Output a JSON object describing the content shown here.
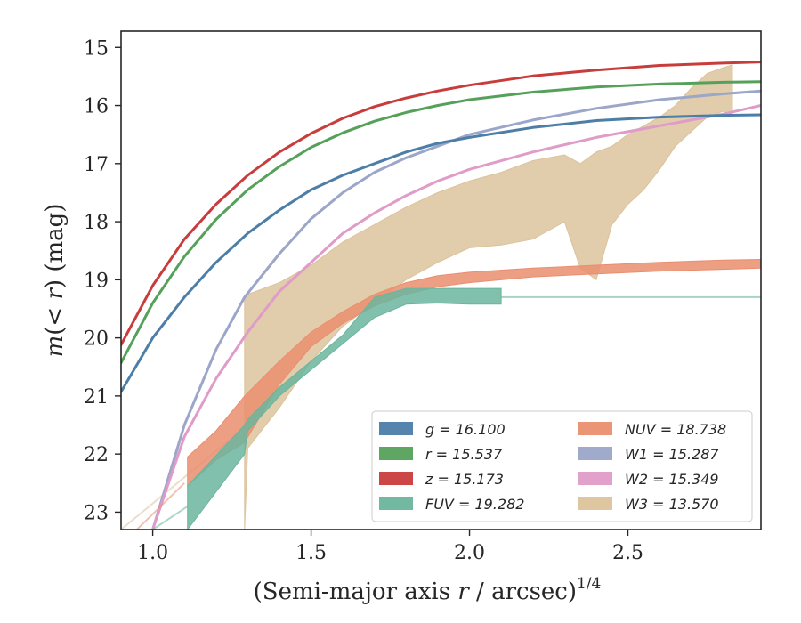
{
  "chart_data": {
    "type": "line",
    "xlabel": "(Semi-major axis r / arcsec)",
    "xlabel_var": "r",
    "xlabel_exp": "1/4",
    "ylabel": "m(< r) (mag)",
    "xlim": [
      0.9,
      2.92
    ],
    "ylim": [
      23.3,
      14.72
    ],
    "y_inverted": true,
    "x_ticks": [
      1.0,
      1.5,
      2.0,
      2.5
    ],
    "x_tick_labels": [
      "1.0",
      "1.5",
      "2.0",
      "2.5"
    ],
    "y_ticks": [
      15,
      16,
      17,
      18,
      19,
      20,
      21,
      22,
      23
    ],
    "y_tick_labels": [
      "15",
      "16",
      "17",
      "18",
      "19",
      "20",
      "21",
      "22",
      "23"
    ],
    "grid": false,
    "legend_position": "bottom-right",
    "legend_columns": 2,
    "series": [
      {
        "name": "g = 16.100",
        "color": "#4c7ea8",
        "kind": "line",
        "x": [
          0.9,
          1.0,
          1.1,
          1.2,
          1.3,
          1.4,
          1.5,
          1.6,
          1.7,
          1.8,
          1.9,
          2.0,
          2.2,
          2.4,
          2.6,
          2.8,
          2.92
        ],
        "y": [
          20.93,
          20.0,
          19.3,
          18.7,
          18.2,
          17.8,
          17.45,
          17.2,
          17.0,
          16.8,
          16.65,
          16.55,
          16.38,
          16.26,
          16.2,
          16.17,
          16.16
        ]
      },
      {
        "name": "r = 15.537",
        "color": "#55a15a",
        "kind": "line",
        "x": [
          0.9,
          1.0,
          1.1,
          1.2,
          1.3,
          1.4,
          1.5,
          1.6,
          1.7,
          1.8,
          1.9,
          2.0,
          2.2,
          2.4,
          2.6,
          2.8,
          2.92
        ],
        "y": [
          20.43,
          19.4,
          18.6,
          17.96,
          17.45,
          17.05,
          16.72,
          16.47,
          16.27,
          16.12,
          16.0,
          15.9,
          15.77,
          15.68,
          15.63,
          15.6,
          15.59
        ]
      },
      {
        "name": "z = 15.173",
        "color": "#c93c3c",
        "kind": "line",
        "x": [
          0.9,
          1.0,
          1.1,
          1.2,
          1.3,
          1.4,
          1.5,
          1.6,
          1.7,
          1.8,
          1.9,
          2.0,
          2.2,
          2.4,
          2.6,
          2.8,
          2.92
        ],
        "y": [
          20.12,
          19.1,
          18.3,
          17.7,
          17.2,
          16.8,
          16.48,
          16.22,
          16.02,
          15.87,
          15.75,
          15.65,
          15.49,
          15.39,
          15.31,
          15.27,
          15.25
        ]
      },
      {
        "name": "FUV = 19.282",
        "color": "#6bb59d",
        "kind": "band",
        "x": [
          1.11,
          1.29,
          1.3,
          1.4,
          1.5,
          1.6,
          1.7,
          1.8,
          1.9,
          2.0,
          2.1
        ],
        "y_low": [
          23.3,
          22.0,
          21.6,
          21.0,
          20.55,
          20.1,
          19.65,
          19.42,
          19.4,
          19.42,
          19.42
        ],
        "y_high": [
          22.55,
          21.5,
          21.4,
          20.85,
          20.4,
          19.95,
          19.3,
          19.15,
          19.15,
          19.15,
          19.15
        ],
        "tail_x": [
          2.1,
          2.92
        ],
        "tail_y": [
          19.3,
          19.3
        ],
        "pre_x": [
          1.0,
          1.11
        ],
        "pre_y": [
          23.3,
          22.9
        ]
      },
      {
        "name": "NUV = 18.738",
        "color": "#ea8e6f",
        "kind": "band",
        "x": [
          1.11,
          1.2,
          1.29,
          1.4,
          1.5,
          1.6,
          1.7,
          1.8,
          1.9,
          2.0,
          2.2,
          2.4,
          2.6,
          2.8,
          2.92
        ],
        "y_low": [
          22.55,
          22.1,
          21.8,
          20.8,
          20.15,
          19.75,
          19.45,
          19.25,
          19.12,
          19.05,
          18.95,
          18.9,
          18.85,
          18.82,
          18.8
        ],
        "y_high": [
          22.05,
          21.6,
          21.0,
          20.4,
          19.9,
          19.55,
          19.25,
          19.05,
          18.93,
          18.87,
          18.8,
          18.75,
          18.7,
          18.66,
          18.65
        ],
        "pre_x": [
          0.95,
          1.1
        ],
        "pre_y": [
          23.3,
          22.5
        ]
      },
      {
        "name": "W1 = 15.287",
        "color": "#9ba6c8",
        "kind": "line",
        "x": [
          1.0,
          1.1,
          1.2,
          1.29,
          1.4,
          1.5,
          1.6,
          1.7,
          1.8,
          1.9,
          2.0,
          2.2,
          2.4,
          2.6,
          2.8,
          2.92
        ],
        "y": [
          23.3,
          21.5,
          20.2,
          19.3,
          18.55,
          17.95,
          17.5,
          17.15,
          16.9,
          16.7,
          16.5,
          16.25,
          16.05,
          15.9,
          15.8,
          15.75
        ]
      },
      {
        "name": "W2 = 15.349",
        "color": "#e09cc8",
        "kind": "line",
        "x": [
          1.0,
          1.1,
          1.2,
          1.3,
          1.4,
          1.5,
          1.6,
          1.7,
          1.8,
          1.9,
          2.0,
          2.2,
          2.4,
          2.6,
          2.8,
          2.92
        ],
        "y": [
          23.3,
          21.7,
          20.7,
          19.9,
          19.2,
          18.7,
          18.2,
          17.85,
          17.55,
          17.3,
          17.1,
          16.8,
          16.55,
          16.35,
          16.15,
          16.0
        ]
      },
      {
        "name": "W3 = 13.570",
        "color": "#dcc39c",
        "kind": "band",
        "x": [
          1.29,
          1.3,
          1.4,
          1.5,
          1.6,
          1.7,
          1.8,
          1.9,
          2.0,
          2.1,
          2.2,
          2.3,
          2.35,
          2.4,
          2.45,
          2.5,
          2.55,
          2.6,
          2.65,
          2.7,
          2.75,
          2.8,
          2.83
        ],
        "y_low": [
          23.3,
          21.9,
          21.2,
          20.4,
          19.8,
          19.4,
          19.0,
          18.7,
          18.45,
          18.4,
          18.3,
          18.0,
          18.8,
          19.0,
          18.05,
          17.7,
          17.45,
          17.1,
          16.7,
          16.45,
          16.2,
          16.1,
          16.15
        ],
        "y_high": [
          19.3,
          19.25,
          19.05,
          18.75,
          18.35,
          18.05,
          17.75,
          17.5,
          17.3,
          17.15,
          16.95,
          16.85,
          17.0,
          16.8,
          16.7,
          16.5,
          16.35,
          16.2,
          16.0,
          15.7,
          15.45,
          15.35,
          15.3
        ],
        "pre_x": [
          0.9,
          1.3
        ],
        "pre_y": [
          23.3,
          21.5
        ]
      }
    ],
    "legend": [
      {
        "label": "g = 16.100",
        "series": 0,
        "color": "#4c7ea8"
      },
      {
        "label": "r = 15.537",
        "series": 1,
        "color": "#55a15a"
      },
      {
        "label": "z = 15.173",
        "series": 2,
        "color": "#c93c3c"
      },
      {
        "label": "FUV = 19.282",
        "series": 3,
        "color": "#6bb59d"
      },
      {
        "label": "NUV = 18.738",
        "series": 4,
        "color": "#ea8e6f"
      },
      {
        "label": "W1 = 15.287",
        "series": 5,
        "color": "#9ba6c8"
      },
      {
        "label": "W2 = 15.349",
        "series": 6,
        "color": "#e09cc8"
      },
      {
        "label": "W3 = 13.570",
        "series": 7,
        "color": "#dcc39c"
      }
    ]
  }
}
